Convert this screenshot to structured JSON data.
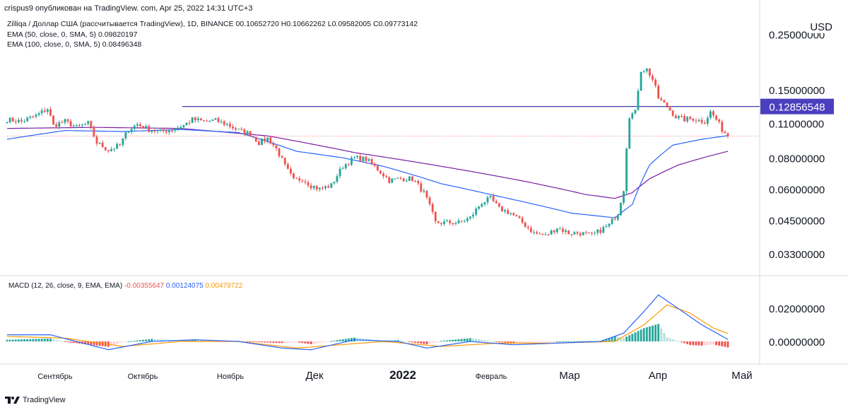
{
  "header": {
    "publisher": "crispus9 опубликован на TradingView. com, Apr 25, 2022 14:31 UTC+3"
  },
  "legend": {
    "symbol_line": "Zilliqa / Доллар США (рассчитывается TradingView), 1D, BINANCE 00.10652720 H0.10662262 L0.09582005 C0.09773142",
    "ema50": "EMA (50, close, 0, SMA, 5) 0.09820197",
    "ema100": "EMA (100, close, 0, SMA, 5) 0.08496348"
  },
  "macd_legend": {
    "label": "MACD (12, 26, close, 9, EMA, EMA)",
    "hist": "-0.00355647",
    "macd": "0.00124075",
    "signal": "0.00479722"
  },
  "currency": "USD",
  "footer": {
    "brand": "TradingView"
  },
  "colors": {
    "up": "#26a69a",
    "down": "#ef5350",
    "ema50": "#2962ff",
    "ema100": "#7b1fa2",
    "signal": "#ff9800",
    "badge": "#4a3fbf",
    "hline": "#3f3aa8"
  },
  "chart_data": {
    "type": "candlestick",
    "title": "Zilliqa / Доллар США",
    "price_axis": {
      "scale": "log",
      "ticks": [
        "0.25000000",
        "0.15000000",
        "0.11000000",
        "0.08000000",
        "0.06000000",
        "0.04500000",
        "0.03300000"
      ],
      "tick_values": [
        0.25,
        0.15,
        0.11,
        0.08,
        0.06,
        0.045,
        0.033
      ]
    },
    "macd_axis": {
      "ticks": [
        "0.02000000",
        "0.00000000"
      ],
      "tick_values": [
        0.02,
        0.0
      ]
    },
    "horizontal_line": {
      "value": 0.12856548,
      "label": "0.12856548"
    },
    "last_close": 0.09773142,
    "time_axis": [
      "Сентябрь",
      "Октябрь",
      "Ноябрь",
      "Дек",
      "2022",
      "Февраль",
      "Мар",
      "Апр",
      "Май"
    ],
    "anchors": [
      [
        0,
        0.114
      ],
      [
        5,
        0.112
      ],
      [
        10,
        0.118
      ],
      [
        14,
        0.126
      ],
      [
        16,
        0.108
      ],
      [
        20,
        0.112
      ],
      [
        24,
        0.106
      ],
      [
        28,
        0.11
      ],
      [
        31,
        0.092
      ],
      [
        35,
        0.086
      ],
      [
        39,
        0.09
      ],
      [
        42,
        0.104
      ],
      [
        45,
        0.109
      ],
      [
        49,
        0.104
      ],
      [
        53,
        0.102
      ],
      [
        57,
        0.104
      ],
      [
        61,
        0.108
      ],
      [
        64,
        0.114
      ],
      [
        68,
        0.112
      ],
      [
        72,
        0.113
      ],
      [
        76,
        0.109
      ],
      [
        80,
        0.103
      ],
      [
        84,
        0.1
      ],
      [
        87,
        0.092
      ],
      [
        90,
        0.096
      ],
      [
        93,
        0.087
      ],
      [
        96,
        0.074
      ],
      [
        99,
        0.065
      ],
      [
        102,
        0.066
      ],
      [
        105,
        0.062
      ],
      [
        108,
        0.06
      ],
      [
        112,
        0.062
      ],
      [
        116,
        0.074
      ],
      [
        120,
        0.08
      ],
      [
        124,
        0.079
      ],
      [
        128,
        0.072
      ],
      [
        132,
        0.065
      ],
      [
        136,
        0.066
      ],
      [
        140,
        0.066
      ],
      [
        144,
        0.058
      ],
      [
        148,
        0.044
      ],
      [
        152,
        0.044
      ],
      [
        156,
        0.044
      ],
      [
        160,
        0.046
      ],
      [
        164,
        0.053
      ],
      [
        167,
        0.055
      ],
      [
        170,
        0.05
      ],
      [
        174,
        0.048
      ],
      [
        178,
        0.044
      ],
      [
        182,
        0.04
      ],
      [
        186,
        0.039
      ],
      [
        190,
        0.042
      ],
      [
        194,
        0.04
      ],
      [
        198,
        0.04
      ],
      [
        202,
        0.039
      ],
      [
        205,
        0.041
      ],
      [
        208,
        0.043
      ],
      [
        211,
        0.048
      ],
      [
        213,
        0.06
      ],
      [
        215,
        0.118
      ],
      [
        217,
        0.122
      ],
      [
        219,
        0.18
      ],
      [
        221,
        0.181
      ],
      [
        223,
        0.165
      ],
      [
        225,
        0.139
      ],
      [
        228,
        0.128
      ],
      [
        231,
        0.117
      ],
      [
        234,
        0.114
      ],
      [
        237,
        0.115
      ],
      [
        239,
        0.113
      ],
      [
        241,
        0.112
      ],
      [
        243,
        0.122
      ],
      [
        245,
        0.114
      ],
      [
        247,
        0.104
      ],
      [
        249,
        0.0977
      ]
    ],
    "ema50_anchors": [
      [
        0,
        0.095
      ],
      [
        20,
        0.103
      ],
      [
        40,
        0.102
      ],
      [
        60,
        0.104
      ],
      [
        80,
        0.101
      ],
      [
        100,
        0.085
      ],
      [
        116,
        0.08
      ],
      [
        130,
        0.074
      ],
      [
        150,
        0.063
      ],
      [
        170,
        0.056
      ],
      [
        195,
        0.048
      ],
      [
        210,
        0.046
      ],
      [
        216,
        0.052
      ],
      [
        222,
        0.075
      ],
      [
        230,
        0.09
      ],
      [
        240,
        0.095
      ],
      [
        249,
        0.0982
      ]
    ],
    "ema100_anchors": [
      [
        0,
        0.105
      ],
      [
        30,
        0.106
      ],
      [
        60,
        0.105
      ],
      [
        90,
        0.098
      ],
      [
        120,
        0.084
      ],
      [
        150,
        0.074
      ],
      [
        180,
        0.064
      ],
      [
        200,
        0.057
      ],
      [
        210,
        0.055
      ],
      [
        216,
        0.058
      ],
      [
        222,
        0.066
      ],
      [
        232,
        0.075
      ],
      [
        242,
        0.081
      ],
      [
        249,
        0.085
      ]
    ],
    "macd_anchors": [
      [
        0,
        0.004
      ],
      [
        15,
        0.004
      ],
      [
        35,
        -0.005
      ],
      [
        50,
        0.0
      ],
      [
        65,
        0.001
      ],
      [
        80,
        0.0
      ],
      [
        95,
        -0.004
      ],
      [
        105,
        -0.005
      ],
      [
        120,
        0.001
      ],
      [
        135,
        0.0
      ],
      [
        145,
        -0.004
      ],
      [
        160,
        0.0
      ],
      [
        175,
        -0.002
      ],
      [
        190,
        -0.001
      ],
      [
        205,
        0.0
      ],
      [
        213,
        0.005
      ],
      [
        220,
        0.018
      ],
      [
        225,
        0.028
      ],
      [
        230,
        0.022
      ],
      [
        240,
        0.01
      ],
      [
        249,
        0.0012
      ]
    ],
    "signal_anchors": [
      [
        0,
        0.003
      ],
      [
        20,
        0.002
      ],
      [
        40,
        -0.003
      ],
      [
        60,
        0.0
      ],
      [
        80,
        0.0
      ],
      [
        100,
        -0.004
      ],
      [
        115,
        -0.002
      ],
      [
        130,
        0.0
      ],
      [
        150,
        -0.003
      ],
      [
        170,
        -0.001
      ],
      [
        190,
        -0.001
      ],
      [
        210,
        0.0
      ],
      [
        220,
        0.01
      ],
      [
        228,
        0.022
      ],
      [
        236,
        0.017
      ],
      [
        244,
        0.008
      ],
      [
        249,
        0.0048
      ]
    ]
  }
}
